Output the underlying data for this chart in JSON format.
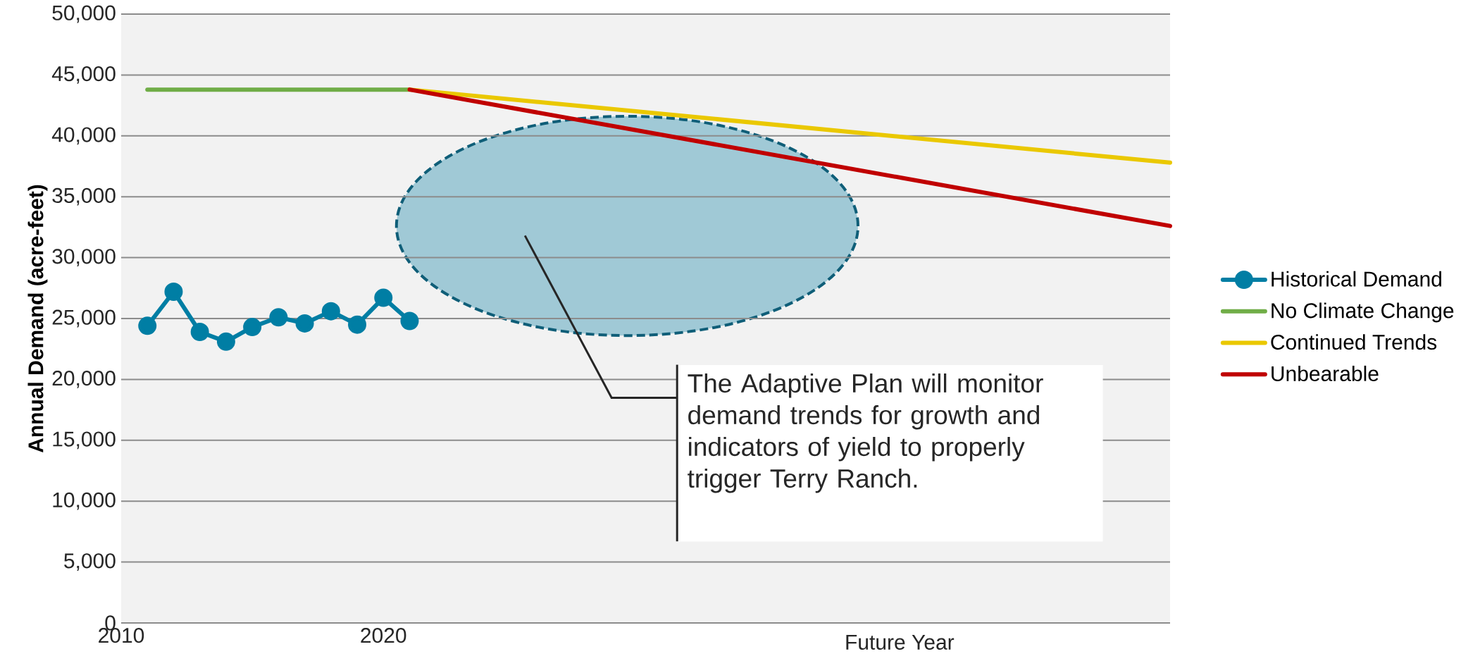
{
  "chart_data": {
    "type": "line",
    "xlabel": "Future Year",
    "ylabel": "Annual Demand (acre-feet)",
    "annotations": [
      "The Adaptive Plan will monitor demand trends for growth and indicators of yield to properly trigger Terry Ranch."
    ],
    "series": [
      {
        "name": "Historical Demand",
        "color": "#007ea4",
        "marker": "circle",
        "x": [
          2011,
          2012,
          2013,
          2014,
          2015,
          2016,
          2017,
          2018,
          2019,
          2020,
          2021
        ],
        "values": [
          24400,
          27200,
          23900,
          23100,
          24300,
          25100,
          24600,
          25600,
          24500,
          26700,
          24800
        ]
      },
      {
        "name": "No Climate Change",
        "color": "#70ad47",
        "x": [
          2011,
          2021
        ],
        "values": [
          43800,
          43800
        ]
      },
      {
        "name": "Continued Trends",
        "color": "#eac800",
        "x": [
          2021,
          2050
        ],
        "values": [
          43800,
          37800
        ]
      },
      {
        "name": "Unbearable",
        "color": "#c00000",
        "x": [
          2021,
          2050
        ],
        "values": [
          43800,
          32600
        ]
      }
    ],
    "xlim": [
      2010,
      2050
    ],
    "xticks": [
      2010,
      2020
    ],
    "ylim": [
      0,
      50000
    ],
    "yticks": [
      0,
      {
        "value": 5000,
        "label": "5,000"
      },
      {
        "value": 10000,
        "label": "10,000"
      },
      {
        "value": 15000,
        "label": "15,000"
      },
      {
        "value": 20000,
        "label": "20,000"
      },
      {
        "value": 25000,
        "label": "25,000"
      },
      {
        "value": 30000,
        "label": "30,000"
      },
      {
        "value": 35000,
        "label": "35,000"
      },
      {
        "value": 40000,
        "label": "40,000"
      },
      {
        "value": 45000,
        "label": "45,000"
      },
      {
        "value": 50000,
        "label": "50,000"
      }
    ],
    "grid": "y",
    "legend": "right"
  }
}
